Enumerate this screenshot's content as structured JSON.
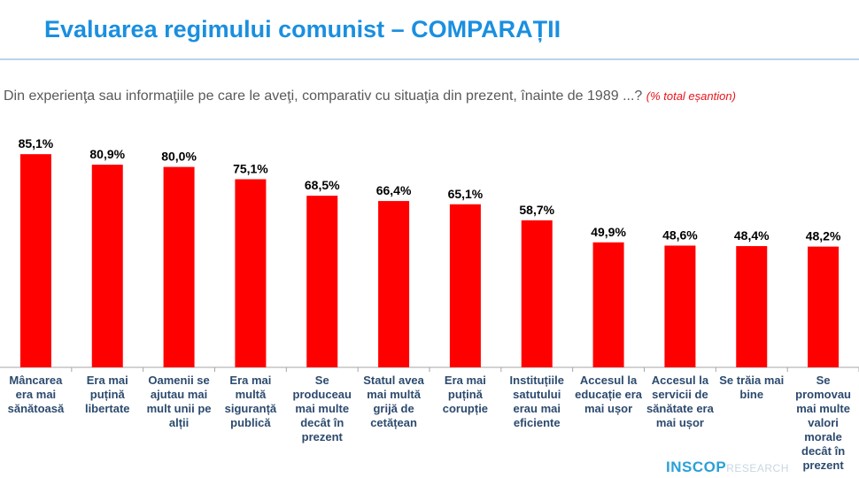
{
  "header": {
    "title": "Evaluarea regimului comunist – COMPARAȚII"
  },
  "subtitle": {
    "question": "Din experienţa sau informaţiile pe care le aveţi, comparativ cu situaţia din prezent, înainte de 1989 ...?",
    "note": "(% total eșantion)"
  },
  "logo": {
    "text": "INSCOP",
    "suffix": "RESEARCH"
  },
  "chart_data": {
    "type": "bar",
    "title": "",
    "xlabel": "",
    "ylabel": "",
    "ylim": [
      0,
      100
    ],
    "grid": false,
    "bar_color": "#ff0000",
    "categories": [
      "Mâncarea era mai sănătoasă",
      "Era mai puțină libertate",
      "Oamenii se ajutau mai mult unii pe alții",
      "Era mai multă siguranță publică",
      "Se produceau mai multe decât în prezent",
      "Statul avea mai multă grijă de cetățean",
      "Era mai puțină corupție",
      "Instituțiile satutului erau mai eficiente",
      "Accesul la educație era mai ușor",
      "Accesul la servicii de sănătate era mai ușor",
      "Se trăia mai bine",
      "Se promovau mai multe valori morale decât în prezent"
    ],
    "values": [
      85.1,
      80.9,
      80.0,
      75.1,
      68.5,
      66.4,
      65.1,
      58.7,
      49.9,
      48.6,
      48.4,
      48.2
    ],
    "data_labels": [
      "85,1%",
      "80,9%",
      "80,0%",
      "75,1%",
      "68,5%",
      "66,4%",
      "65,1%",
      "58,7%",
      "49,9%",
      "48,6%",
      "48,4%",
      "48,2%"
    ]
  }
}
